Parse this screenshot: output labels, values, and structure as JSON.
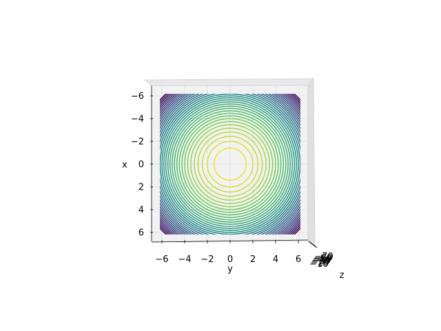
{
  "chart_data": {
    "type": "contour",
    "view": "3d-axes-top-down",
    "xlabel": "x",
    "ylabel": "y",
    "zlabel": "z",
    "x_ticks": [
      "−6",
      "−4",
      "−2",
      "0",
      "2",
      "4",
      "6"
    ],
    "y_ticks": [
      "−6",
      "−4",
      "−2",
      "0",
      "2",
      "4",
      "6"
    ],
    "z_ticks": [
      "−70",
      "−60",
      "−50",
      "−40",
      "−30",
      "−20",
      "−10"
    ],
    "xlim": [
      -7,
      7
    ],
    "ylim": [
      -7,
      7
    ],
    "colormap": "viridis",
    "function": "z = -(x^2 + y^2)",
    "z_range": [
      -72,
      0
    ],
    "contour_levels": [
      -70,
      -68,
      -66,
      -64,
      -62,
      -60,
      -58,
      -56,
      -54,
      -52,
      -50,
      -48,
      -46,
      -44,
      -42,
      -40,
      -38,
      -36,
      -34,
      -32,
      -30,
      -28,
      -26,
      -24,
      -22,
      -20,
      -18,
      -16,
      -14,
      -12,
      -10,
      -8,
      -6,
      -4,
      -2
    ],
    "grid": true
  }
}
